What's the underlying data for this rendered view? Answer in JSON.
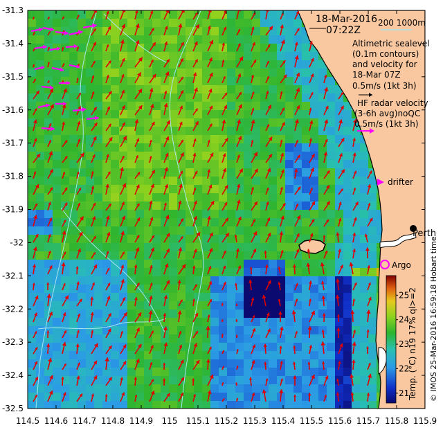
{
  "map": {
    "date_line": "18-Mar-2016",
    "time_line": "07:22Z",
    "isobath_legend": "200  1000m",
    "altimetry_legend": [
      "Altimetric sealevel",
      "(0.1m contours)",
      "and velocity for",
      "18-Mar 07Z",
      "0.5m/s (1kt 3h)"
    ],
    "hf_legend": [
      "HF radar velocity",
      "(3-6h avg)noQC",
      "0.5m/s (1kt 3h)"
    ],
    "drifter_label": "drifter",
    "argo_label": "Argo",
    "city_label": "Perth",
    "credit": "© IMOS 25-Mar-2016 16:59:18 Hobart time",
    "colorbar_label": "Temp. (°C) n19 17% ql>=2",
    "colorbar_ticks": [
      "25",
      "24",
      "23",
      "22",
      "21"
    ],
    "colorbar_range": [
      20.6,
      25.8
    ],
    "colors": {
      "land": "#f9c8a0",
      "drifter": "#ff00ff",
      "hf_arrow": "#ff00ff",
      "alt_arrow": "#000000",
      "current_arrow": "#e00000",
      "isobath": "#a8e6ee"
    },
    "lon_ticks": [
      "114.5",
      "114.6",
      "114.7",
      "114.8",
      "114.9",
      "115",
      "115.1",
      "115.2",
      "115.3",
      "115.4",
      "115.5",
      "115.6",
      "115.7",
      "115.8",
      "115.9"
    ],
    "lat_ticks": [
      "-31.3",
      "-31.4",
      "-31.5",
      "-31.6",
      "-31.7",
      "-31.8",
      "-31.9",
      "-32",
      "-32.1",
      "-32.2",
      "-32.3",
      "-32.4",
      "-32.5"
    ],
    "lon_range": [
      114.5,
      115.9
    ],
    "lat_range": [
      -32.5,
      -31.3
    ]
  }
}
